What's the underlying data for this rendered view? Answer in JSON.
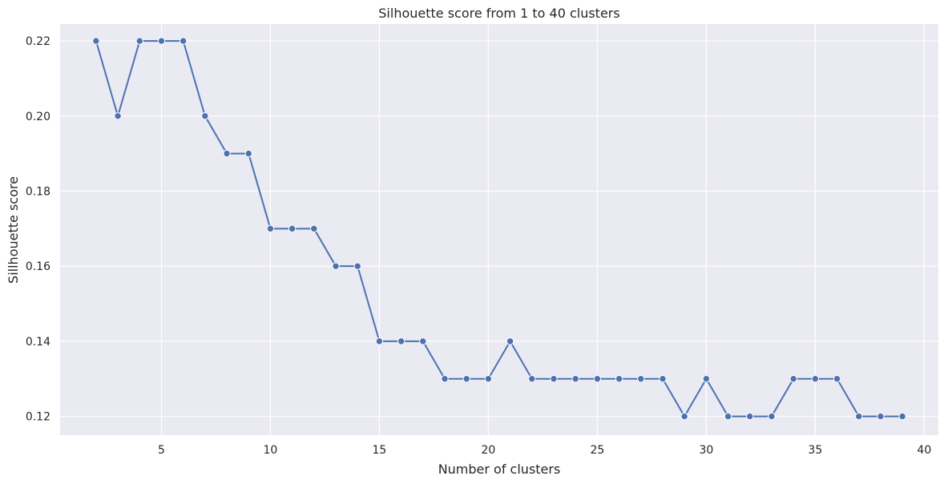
{
  "chart_data": {
    "type": "line",
    "title": "Silhouette score from 1 to 40 clusters",
    "xlabel": "Number of clusters",
    "ylabel": "Sillhouette score",
    "x": [
      2,
      3,
      4,
      5,
      6,
      7,
      8,
      9,
      10,
      11,
      12,
      13,
      14,
      15,
      16,
      17,
      18,
      19,
      20,
      21,
      22,
      23,
      24,
      25,
      26,
      27,
      28,
      29,
      30,
      31,
      32,
      33,
      34,
      35,
      36,
      37,
      38,
      39
    ],
    "series": [
      {
        "values": [
          0.22,
          0.2,
          0.22,
          0.22,
          0.22,
          0.2,
          0.19,
          0.19,
          0.17,
          0.17,
          0.17,
          0.16,
          0.16,
          0.14,
          0.14,
          0.14,
          0.13,
          0.13,
          0.13,
          0.14,
          0.13,
          0.13,
          0.13,
          0.13,
          0.13,
          0.13,
          0.13,
          0.12,
          0.13,
          0.12,
          0.12,
          0.12,
          0.13,
          0.13,
          0.13,
          0.12,
          0.12,
          0.12
        ],
        "color": "#4c72b0",
        "marker": "circle"
      }
    ],
    "xlim": [
      0.35,
      40.65
    ],
    "ylim": [
      0.115,
      0.2245
    ],
    "xticks": [
      5,
      10,
      15,
      20,
      25,
      30,
      35,
      40
    ],
    "xtick_labels": [
      "5",
      "10",
      "15",
      "20",
      "25",
      "30",
      "35",
      "40"
    ],
    "yticks": [
      0.12,
      0.14,
      0.16,
      0.18,
      0.2,
      0.22
    ],
    "ytick_labels": [
      "0.12",
      "0.14",
      "0.16",
      "0.18",
      "0.20",
      "0.22"
    ],
    "grid": true,
    "background_color": "#eaeaf2",
    "grid_color": "#ffffff"
  }
}
